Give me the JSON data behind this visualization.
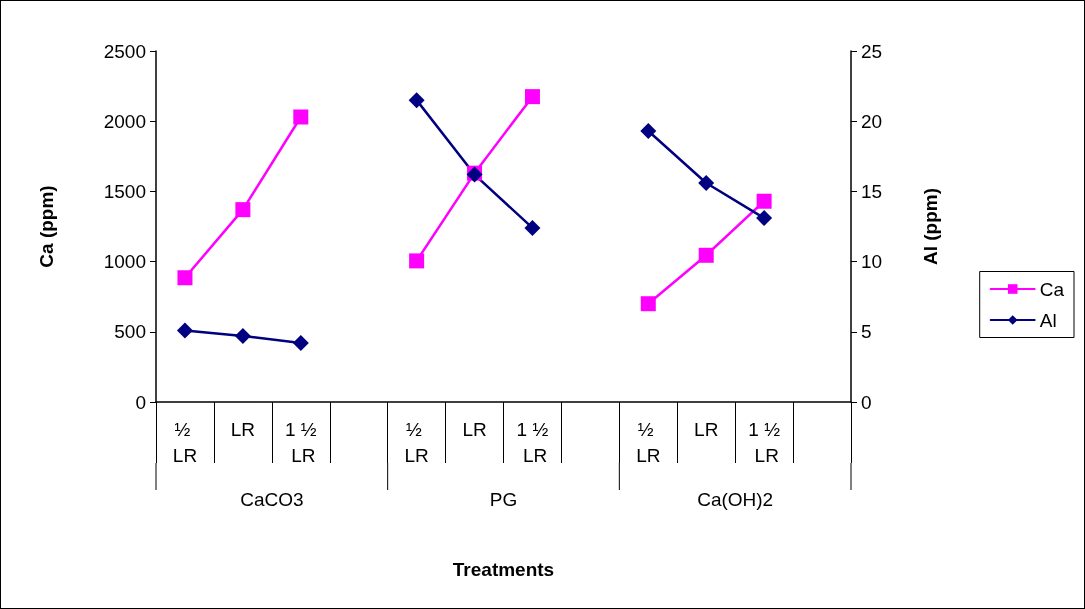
{
  "chart_data": {
    "type": "line",
    "xlabel": "Treatments",
    "ylabel": "Ca (ppm)",
    "y2label": "Al (ppm)",
    "categories": [
      "½ LR",
      "LR",
      "1 ½ LR",
      null,
      "½ LR",
      "LR",
      "1 ½ LR",
      null,
      "½ LR",
      "LR",
      "1 ½ LR",
      null
    ],
    "annotations": [
      "CaCO3",
      "PG",
      "Ca(OH)2"
    ],
    "series": [
      {
        "name": "Ca",
        "color": "#ff00ff",
        "marker": "square",
        "values": [
          885,
          1370,
          2030,
          null,
          1005,
          1630,
          2175,
          null,
          700,
          1045,
          1430,
          null
        ]
      },
      {
        "name": "Al",
        "color": "#000080",
        "marker": "diamond",
        "axis": "y2",
        "values": [
          5.1,
          4.7,
          4.2,
          null,
          21.5,
          16.2,
          12.4,
          null,
          19.3,
          15.6,
          13.1,
          null
        ]
      }
    ],
    "ylim": [
      0,
      2500
    ],
    "yticks": [
      0,
      500,
      1000,
      1500,
      2000,
      2500
    ],
    "y2lim": [
      0,
      25
    ],
    "y2ticks": [
      0,
      5,
      10,
      15,
      20,
      25
    ],
    "grid": false,
    "legend": "right",
    "line_style": "solid"
  }
}
